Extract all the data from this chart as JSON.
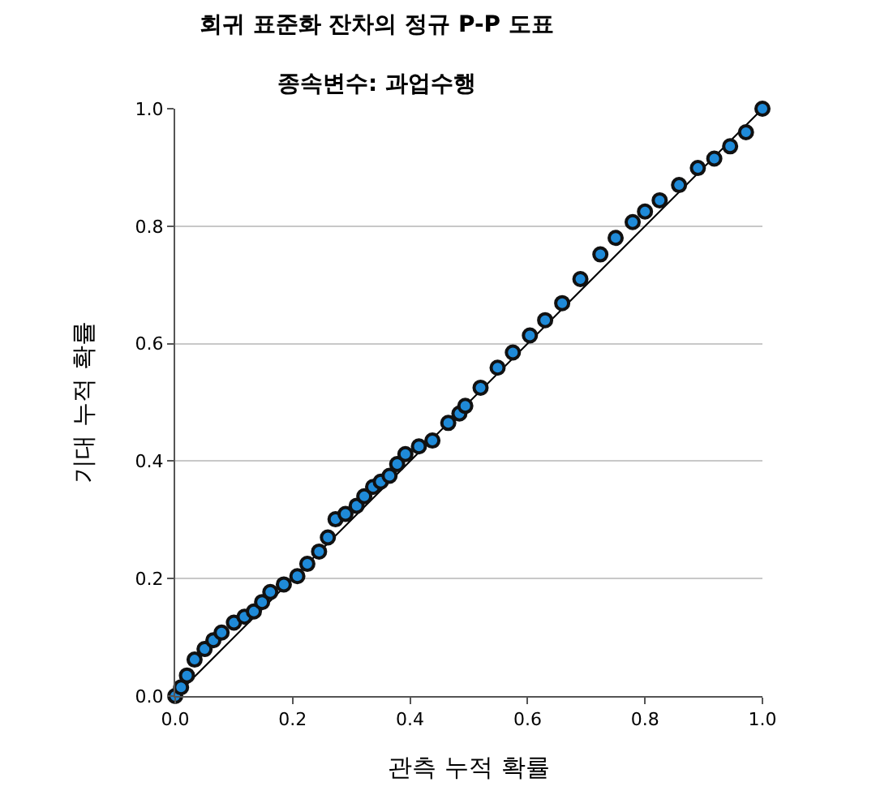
{
  "chart_data": {
    "type": "scatter",
    "title": "회귀 표준화 잔차의 정규 P-P 도표",
    "subtitle": "종속변수: 과업수행",
    "xlabel": "관측 누적 확률",
    "ylabel": "기대 누적 확률",
    "series": [
      {
        "type": "line",
        "x": [
          0,
          1
        ],
        "values": [
          0,
          1
        ],
        "color": "#000000"
      },
      {
        "color": "#1f8ad8",
        "marker": "circle",
        "x": [
          0.0,
          0.01,
          0.02,
          0.033,
          0.05,
          0.065,
          0.079,
          0.1,
          0.118,
          0.134,
          0.148,
          0.162,
          0.185,
          0.208,
          0.225,
          0.245,
          0.26,
          0.273,
          0.29,
          0.309,
          0.322,
          0.337,
          0.35,
          0.365,
          0.378,
          0.392,
          0.415,
          0.438,
          0.465,
          0.484,
          0.494,
          0.52,
          0.549,
          0.575,
          0.604,
          0.63,
          0.659,
          0.69,
          0.724,
          0.75,
          0.779,
          0.8,
          0.825,
          0.858,
          0.89,
          0.918,
          0.945,
          0.972,
          1.0
        ],
        "values": [
          0.0,
          0.015,
          0.035,
          0.062,
          0.08,
          0.095,
          0.108,
          0.125,
          0.135,
          0.144,
          0.16,
          0.177,
          0.19,
          0.204,
          0.225,
          0.246,
          0.27,
          0.301,
          0.31,
          0.324,
          0.34,
          0.356,
          0.365,
          0.375,
          0.395,
          0.412,
          0.425,
          0.435,
          0.465,
          0.481,
          0.494,
          0.525,
          0.559,
          0.585,
          0.614,
          0.64,
          0.669,
          0.71,
          0.752,
          0.78,
          0.807,
          0.825,
          0.844,
          0.87,
          0.899,
          0.915,
          0.936,
          0.96,
          1.0
        ]
      }
    ],
    "xlim": [
      0,
      1
    ],
    "ylim": [
      0,
      1
    ],
    "xticks": [
      {
        "value": 0,
        "label": "0.0"
      },
      {
        "value": 0.2,
        "label": "0.2"
      },
      {
        "value": 0.4,
        "label": "0.4"
      },
      {
        "value": 0.6,
        "label": "0.6"
      },
      {
        "value": 0.8,
        "label": "0.8"
      },
      {
        "value": 1,
        "label": "1.0"
      }
    ],
    "yticks": [
      {
        "value": 0,
        "label": "0.0"
      },
      {
        "value": 0.2,
        "label": "0.2"
      },
      {
        "value": 0.4,
        "label": "0.4"
      },
      {
        "value": 0.6,
        "label": "0.6"
      },
      {
        "value": 0.8,
        "label": "0.8"
      },
      {
        "value": 1,
        "label": "1.0"
      }
    ],
    "grid": "y"
  }
}
